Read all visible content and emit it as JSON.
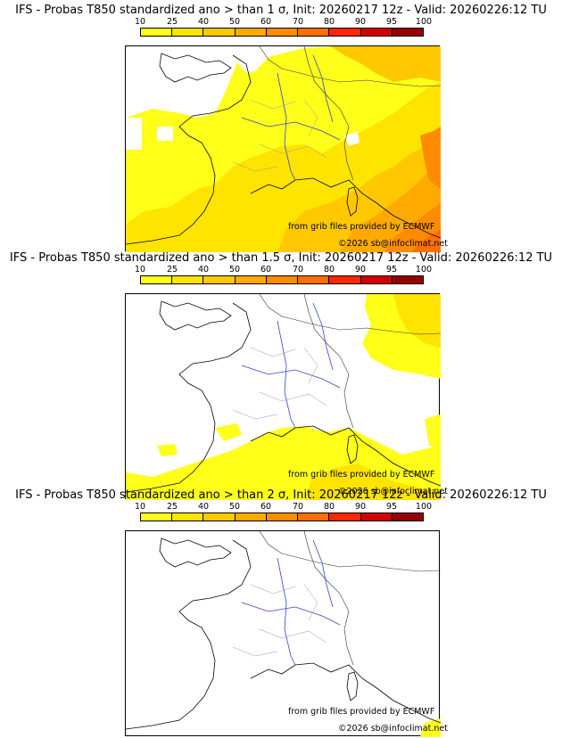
{
  "colorbar": {
    "ticks": [
      "10",
      "25",
      "40",
      "50",
      "60",
      "70",
      "80",
      "90",
      "95",
      "100"
    ],
    "colors": [
      "#ffff1a",
      "#ffe400",
      "#ffc800",
      "#ffaa00",
      "#ff8c00",
      "#ff6e00",
      "#ff2800",
      "#d20000",
      "#960000",
      "#5a0000"
    ]
  },
  "panels": [
    {
      "title": "IFS - Probas T850  standardized ano > than 1 σ, Init: 20260217 12z - Valid: 20260226:12 TU",
      "credit": "from grib files provided by ECMWF",
      "copyright": "©2026 sb@infoclimat.net"
    },
    {
      "title": "IFS - Probas T850  standardized ano > than 1.5 σ, Init: 20260217 12z - Valid: 20260226:12 TU",
      "credit": "from grib files provided by ECMWF",
      "copyright": "©2026 sb@infoclimat.net"
    },
    {
      "title": "IFS - Probas T850  standardized ano > than 2 σ, Init: 20260217 12z - Valid: 20260226:12 TU",
      "credit": "from grib files provided by ECMWF",
      "copyright": "©2026 sb@infoclimat.net"
    }
  ]
}
